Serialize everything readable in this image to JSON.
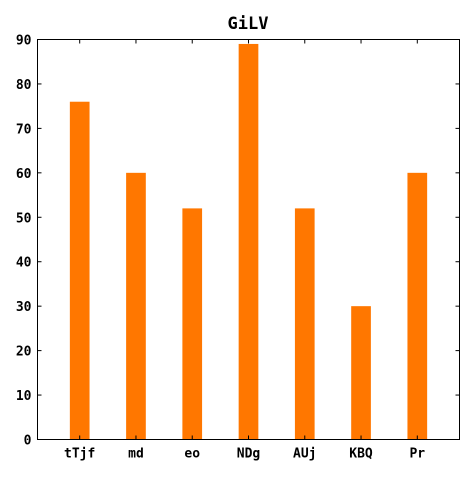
{
  "chart_data": {
    "type": "bar",
    "title": "GiLV",
    "xlabel": "",
    "ylabel": "",
    "categories": [
      "tTjf",
      "md",
      "eo",
      "NDg",
      "AUj",
      "KBQ",
      "Pr"
    ],
    "values": [
      76,
      60,
      52,
      89,
      52,
      30,
      60
    ],
    "ylim": [
      0,
      90
    ],
    "yticks": [
      0,
      10,
      20,
      30,
      40,
      50,
      60,
      70,
      80,
      90
    ],
    "grid": false,
    "bar_color": "#ff7700",
    "legend": "none"
  }
}
